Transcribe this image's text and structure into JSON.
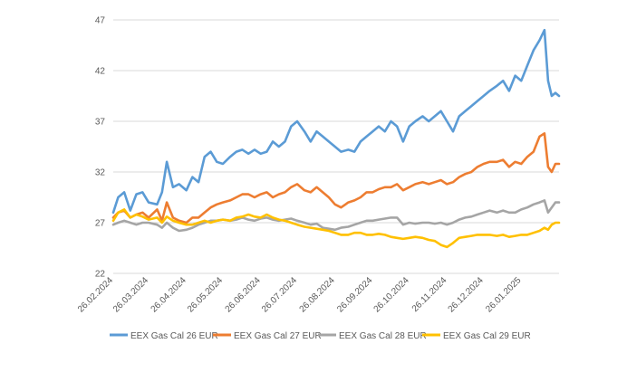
{
  "chart_data": {
    "type": "line",
    "title": "",
    "xlabel": "",
    "ylabel": "",
    "ylim": [
      22,
      47
    ],
    "yticks": [
      "22",
      "27",
      "32",
      "37",
      "42",
      "47"
    ],
    "xticks": [
      "26.02.2024",
      "26.03.2024",
      "26.04.2024",
      "26.05.2024",
      "26.06.2024",
      "26.07.2024",
      "26.08.2024",
      "26.09.2024",
      "26.10.2024",
      "26.11.2024",
      "26.12.2024",
      "26.01.2025"
    ],
    "grid": "horizontal",
    "legend_position": "bottom",
    "x_start": "26.02.2024",
    "x": [
      "26.02.2024",
      "01.03.2024",
      "06.03.2024",
      "11.03.2024",
      "16.03.2024",
      "21.03.2024",
      "26.03.2024",
      "02.04.2024",
      "06.04.2024",
      "10.04.2024",
      "15.04.2024",
      "20.04.2024",
      "26.04.2024",
      "01.05.2024",
      "06.05.2024",
      "11.05.2024",
      "16.05.2024",
      "21.05.2024",
      "26.05.2024",
      "01.06.2024",
      "06.06.2024",
      "11.06.2024",
      "16.06.2024",
      "21.06.2024",
      "26.06.2024",
      "01.07.2024",
      "06.07.2024",
      "11.07.2024",
      "16.07.2024",
      "21.07.2024",
      "26.07.2024",
      "01.08.2024",
      "06.08.2024",
      "11.08.2024",
      "16.08.2024",
      "21.08.2024",
      "26.08.2024",
      "31.08.2024",
      "06.09.2024",
      "11.09.2024",
      "16.09.2024",
      "21.09.2024",
      "26.09.2024",
      "01.10.2024",
      "06.10.2024",
      "11.10.2024",
      "16.10.2024",
      "21.10.2024",
      "26.10.2024",
      "31.10.2024",
      "06.11.2024",
      "11.11.2024",
      "16.11.2024",
      "21.11.2024",
      "26.11.2024",
      "01.12.2024",
      "06.12.2024",
      "11.12.2024",
      "16.12.2024",
      "21.12.2024",
      "26.12.2024",
      "31.12.2024",
      "06.01.2025",
      "11.01.2025",
      "16.01.2025",
      "21.01.2025",
      "26.01.2025",
      "31.01.2025",
      "05.02.2025",
      "10.02.2025",
      "14.02.2025",
      "17.02.2025",
      "20.02.2025",
      "23.02.2025",
      "26.02.2025"
    ],
    "series": [
      {
        "name": "EEX Gas Cal 26 EUR",
        "color": "#5b9bd5",
        "values": [
          28.0,
          29.5,
          30.0,
          28.2,
          29.8,
          30.0,
          29.0,
          28.8,
          30.0,
          33.0,
          30.5,
          30.8,
          30.2,
          31.5,
          31.0,
          33.5,
          34.0,
          33.0,
          32.8,
          33.5,
          34.0,
          34.2,
          33.8,
          34.2,
          33.8,
          34.0,
          35.0,
          34.5,
          35.0,
          36.5,
          37.0,
          36.0,
          35.0,
          36.0,
          35.5,
          35.0,
          34.5,
          34.0,
          34.2,
          34.0,
          35.0,
          35.5,
          36.0,
          36.5,
          36.0,
          37.0,
          36.5,
          35.0,
          36.5,
          37.0,
          37.5,
          37.0,
          37.5,
          38.0,
          37.0,
          36.0,
          37.5,
          38.0,
          38.5,
          39.0,
          39.5,
          40.0,
          40.5,
          41.0,
          40.0,
          41.5,
          41.0,
          42.5,
          44.0,
          45.0,
          46.0,
          41.0,
          39.5,
          39.8,
          39.5
        ]
      },
      {
        "name": "EEX Gas Cal 27 EUR",
        "color": "#ed7d31",
        "values": [
          27.5,
          28.0,
          28.2,
          27.5,
          27.8,
          28.0,
          27.5,
          28.3,
          27.2,
          29.0,
          27.5,
          27.2,
          27.0,
          27.5,
          27.5,
          28.0,
          28.5,
          28.8,
          29.0,
          29.2,
          29.5,
          29.8,
          29.8,
          29.5,
          29.8,
          30.0,
          29.5,
          29.8,
          30.0,
          30.5,
          30.8,
          30.2,
          30.0,
          30.5,
          30.0,
          29.5,
          28.8,
          28.5,
          29.0,
          29.2,
          29.5,
          30.0,
          30.0,
          30.3,
          30.5,
          30.5,
          30.8,
          30.2,
          30.5,
          30.8,
          31.0,
          30.8,
          31.0,
          31.2,
          30.8,
          31.0,
          31.5,
          31.8,
          32.0,
          32.5,
          32.8,
          33.0,
          33.0,
          33.2,
          32.5,
          33.0,
          32.8,
          33.5,
          34.0,
          35.5,
          35.8,
          32.5,
          32.0,
          32.8,
          32.8
        ]
      },
      {
        "name": "EEX Gas Cal 28 EUR",
        "color": "#a5a5a5",
        "values": [
          26.8,
          27.0,
          27.2,
          27.0,
          26.8,
          27.0,
          27.0,
          26.8,
          26.5,
          27.0,
          26.5,
          26.2,
          26.3,
          26.5,
          26.8,
          27.0,
          27.2,
          27.2,
          27.3,
          27.2,
          27.3,
          27.5,
          27.3,
          27.2,
          27.4,
          27.5,
          27.3,
          27.2,
          27.3,
          27.4,
          27.2,
          27.0,
          26.8,
          26.9,
          26.5,
          26.4,
          26.3,
          26.5,
          26.6,
          26.8,
          27.0,
          27.2,
          27.2,
          27.3,
          27.4,
          27.5,
          27.5,
          26.8,
          27.0,
          26.9,
          27.0,
          27.0,
          26.9,
          27.0,
          26.8,
          27.0,
          27.3,
          27.5,
          27.6,
          27.8,
          28.0,
          28.2,
          28.0,
          28.2,
          28.0,
          28.0,
          28.3,
          28.5,
          28.8,
          29.0,
          29.2,
          28.0,
          28.5,
          29.0,
          29.0
        ]
      },
      {
        "name": "EEX Gas Cal 29 EUR",
        "color": "#ffc000",
        "values": [
          27.2,
          28.0,
          28.3,
          27.5,
          27.8,
          27.6,
          27.3,
          27.5,
          27.0,
          27.6,
          27.2,
          27.0,
          26.8,
          26.8,
          27.0,
          27.2,
          27.0,
          27.2,
          27.3,
          27.2,
          27.5,
          27.6,
          27.8,
          27.6,
          27.5,
          27.8,
          27.5,
          27.3,
          27.2,
          27.0,
          26.8,
          26.6,
          26.5,
          26.4,
          26.3,
          26.2,
          26.0,
          25.8,
          25.8,
          26.0,
          26.0,
          25.8,
          25.8,
          25.9,
          25.8,
          25.6,
          25.5,
          25.4,
          25.5,
          25.6,
          25.5,
          25.3,
          25.2,
          24.8,
          24.6,
          25.0,
          25.5,
          25.6,
          25.7,
          25.8,
          25.8,
          25.8,
          25.7,
          25.8,
          25.6,
          25.7,
          25.8,
          25.8,
          26.0,
          26.2,
          26.5,
          26.3,
          26.8,
          27.0,
          27.0
        ]
      }
    ]
  }
}
